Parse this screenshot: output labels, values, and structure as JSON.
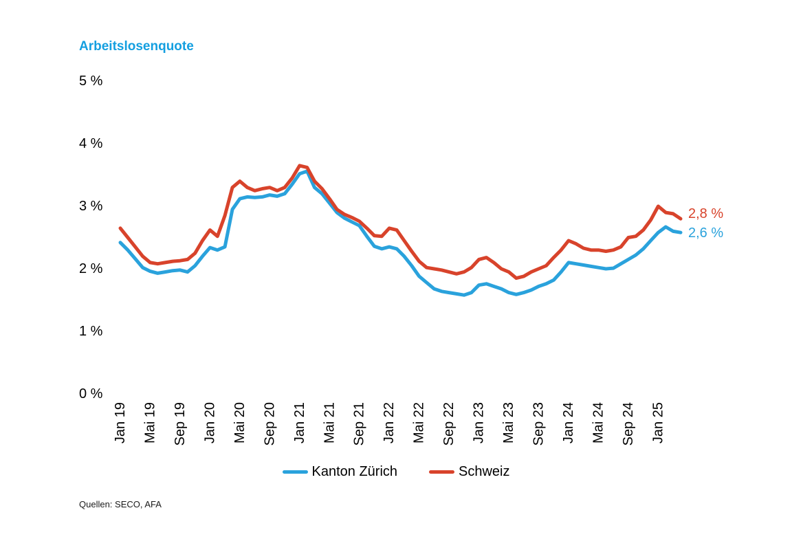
{
  "title": "Arbeitslosenquote",
  "source": "Quellen: SECO, AFA",
  "annotations": {
    "schweiz_end_label": "2,8 %",
    "zuerich_end_label": "2,6 %"
  },
  "legend": {
    "items": [
      {
        "label": "Kanton Zürich",
        "color": "#2aa2dc"
      },
      {
        "label": "Schweiz",
        "color": "#d8432b"
      }
    ]
  },
  "colors": {
    "title_blue": "#149fe0",
    "zuerich_blue": "#2aa2dc",
    "schweiz_red": "#d8432b",
    "text": "#000000"
  },
  "chart_data": {
    "type": "line",
    "title": "Arbeitslosenquote",
    "grid": false,
    "legend_position": "bottom",
    "ylim": [
      0,
      5
    ],
    "y_tick_values": [
      0,
      1,
      2,
      3,
      4,
      5
    ],
    "y_tick_labels": [
      "0 %",
      "1 %",
      "2 %",
      "3 %",
      "4 %",
      "5 %"
    ],
    "x_tick_every": 4,
    "x_tick_labels": [
      "Jan 19",
      "Mai 19",
      "Sep 19",
      "Jan 20",
      "Mai 20",
      "Sep 20",
      "Jan 21",
      "Mai 21",
      "Sep 21",
      "Jan 22",
      "Mai 22",
      "Sep 22",
      "Jan 23",
      "Mai 23",
      "Sep 23",
      "Jan 24",
      "Mai 24",
      "Sep 24",
      "Jan 25"
    ],
    "x_range_note": "monthly values Jan 2019 - Apr 2025",
    "series": [
      {
        "name": "Kanton Zürich",
        "color": "#2aa2dc",
        "end_value": "2,6 %",
        "values": [
          2.42,
          2.3,
          2.16,
          2.02,
          1.96,
          1.93,
          1.95,
          1.97,
          1.98,
          1.95,
          2.05,
          2.2,
          2.34,
          2.3,
          2.35,
          2.95,
          3.12,
          3.15,
          3.14,
          3.15,
          3.18,
          3.16,
          3.2,
          3.35,
          3.52,
          3.56,
          3.3,
          3.2,
          3.05,
          2.9,
          2.81,
          2.75,
          2.69,
          2.52,
          2.36,
          2.32,
          2.35,
          2.32,
          2.2,
          2.05,
          1.88,
          1.78,
          1.68,
          1.64,
          1.62,
          1.6,
          1.58,
          1.62,
          1.74,
          1.76,
          1.72,
          1.68,
          1.62,
          1.59,
          1.62,
          1.66,
          1.72,
          1.76,
          1.82,
          1.95,
          2.1,
          2.08,
          2.06,
          2.04,
          2.02,
          2.0,
          2.01,
          2.08,
          2.15,
          2.22,
          2.32,
          2.45,
          2.58,
          2.67,
          2.6,
          2.58
        ]
      },
      {
        "name": "Schweiz",
        "color": "#d8432b",
        "end_value": "2,8 %",
        "values": [
          2.65,
          2.5,
          2.35,
          2.2,
          2.1,
          2.08,
          2.1,
          2.12,
          2.13,
          2.15,
          2.25,
          2.45,
          2.62,
          2.52,
          2.85,
          3.3,
          3.4,
          3.3,
          3.25,
          3.28,
          3.3,
          3.25,
          3.3,
          3.45,
          3.65,
          3.62,
          3.4,
          3.28,
          3.12,
          2.95,
          2.87,
          2.82,
          2.76,
          2.65,
          2.53,
          2.52,
          2.65,
          2.62,
          2.45,
          2.28,
          2.12,
          2.02,
          2.0,
          1.98,
          1.95,
          1.92,
          1.95,
          2.02,
          2.15,
          2.18,
          2.1,
          2.0,
          1.95,
          1.85,
          1.88,
          1.95,
          2.0,
          2.05,
          2.18,
          2.3,
          2.45,
          2.4,
          2.33,
          2.3,
          2.3,
          2.28,
          2.3,
          2.35,
          2.5,
          2.52,
          2.62,
          2.78,
          3.0,
          2.9,
          2.88,
          2.8
        ]
      }
    ]
  }
}
